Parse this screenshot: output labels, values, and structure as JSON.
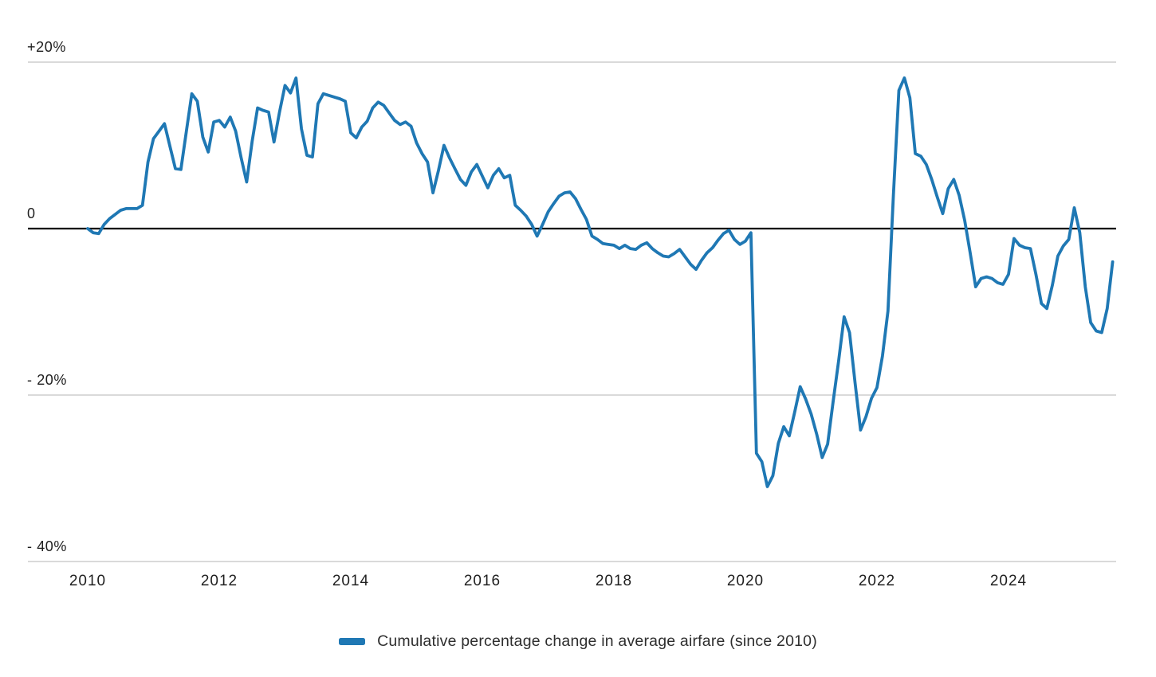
{
  "chart_data": {
    "type": "line",
    "title": "",
    "legend": {
      "label": "Cumulative percentage change in average airfare (since 2010)",
      "swatch_color": "#1f78b4",
      "position": "bottom-center"
    },
    "grid_color": "#cdcdcd",
    "zero_line_color": "#000000",
    "y_axis": {
      "ticks": [
        {
          "value": 20,
          "label": "+20%"
        },
        {
          "value": 0,
          "label": "0"
        },
        {
          "value": -20,
          "label": "- 20%"
        },
        {
          "value": -40,
          "label": "- 40%"
        }
      ],
      "range": [
        -42,
        22
      ],
      "zero_line": true
    },
    "x_axis": {
      "tick_years": [
        2010,
        2012,
        2014,
        2016,
        2018,
        2020,
        2022,
        2024
      ],
      "range_years": [
        2010.0,
        2025.67
      ],
      "grid": false
    },
    "series": [
      {
        "name": "Cumulative percentage change in average airfare (since 2010)",
        "color": "#1f78b4",
        "start_year": 2010,
        "start_month": 1,
        "frequency": "monthly",
        "unit": "percent",
        "values": [
          0.0,
          -0.5,
          -0.6,
          0.5,
          1.2,
          1.7,
          2.2,
          2.4,
          2.4,
          2.4,
          2.8,
          8.0,
          10.8,
          11.7,
          12.6,
          9.9,
          7.2,
          7.1,
          11.7,
          16.2,
          15.3,
          11.0,
          9.2,
          12.8,
          13.0,
          12.2,
          13.4,
          11.7,
          8.5,
          5.6,
          10.5,
          14.5,
          14.2,
          14.0,
          10.4,
          14.0,
          17.2,
          16.3,
          18.1,
          12.0,
          8.8,
          8.6,
          15.0,
          16.2,
          16.0,
          15.8,
          15.6,
          15.3,
          11.5,
          10.9,
          12.2,
          12.9,
          14.5,
          15.2,
          14.8,
          13.9,
          13.0,
          12.5,
          12.8,
          12.3,
          10.3,
          9.0,
          8.0,
          4.3,
          7.0,
          10.0,
          8.5,
          7.2,
          5.9,
          5.2,
          6.8,
          7.7,
          6.3,
          4.9,
          6.4,
          7.2,
          6.1,
          6.4,
          2.8,
          2.2,
          1.5,
          0.5,
          -0.9,
          0.5,
          2.0,
          3.0,
          3.9,
          4.3,
          4.4,
          3.6,
          2.3,
          1.1,
          -0.9,
          -1.3,
          -1.8,
          -1.9,
          -2.0,
          -2.4,
          -2.0,
          -2.4,
          -2.5,
          -2.0,
          -1.7,
          -2.4,
          -2.9,
          -3.3,
          -3.4,
          -3.0,
          -2.5,
          -3.4,
          -4.3,
          -4.9,
          -3.8,
          -2.9,
          -2.3,
          -1.4,
          -0.6,
          -0.2,
          -1.3,
          -1.9,
          -1.5,
          -0.5,
          -27.0,
          -28.0,
          -31.0,
          -29.7,
          -25.8,
          -23.8,
          -24.9,
          -22.0,
          -19.0,
          -20.5,
          -22.3,
          -24.7,
          -27.5,
          -25.9,
          -20.8,
          -15.9,
          -10.6,
          -12.5,
          -18.5,
          -24.2,
          -22.6,
          -20.4,
          -19.1,
          -15.3,
          -9.9,
          4.0,
          16.6,
          18.1,
          15.7,
          9.0,
          8.7,
          7.7,
          5.9,
          3.8,
          1.8,
          4.8,
          5.9,
          4.0,
          1.0,
          -2.9,
          -7.0,
          -6.0,
          -5.8,
          -6.0,
          -6.5,
          -6.7,
          -5.5,
          -1.2,
          -2.0,
          -2.3,
          -2.4,
          -5.5,
          -9.0,
          -9.6,
          -6.8,
          -3.3,
          -2.1,
          -1.3,
          2.5,
          -0.5,
          -7.0,
          -11.3,
          -12.3,
          -12.5,
          -9.6,
          -4.0
        ]
      }
    ]
  }
}
